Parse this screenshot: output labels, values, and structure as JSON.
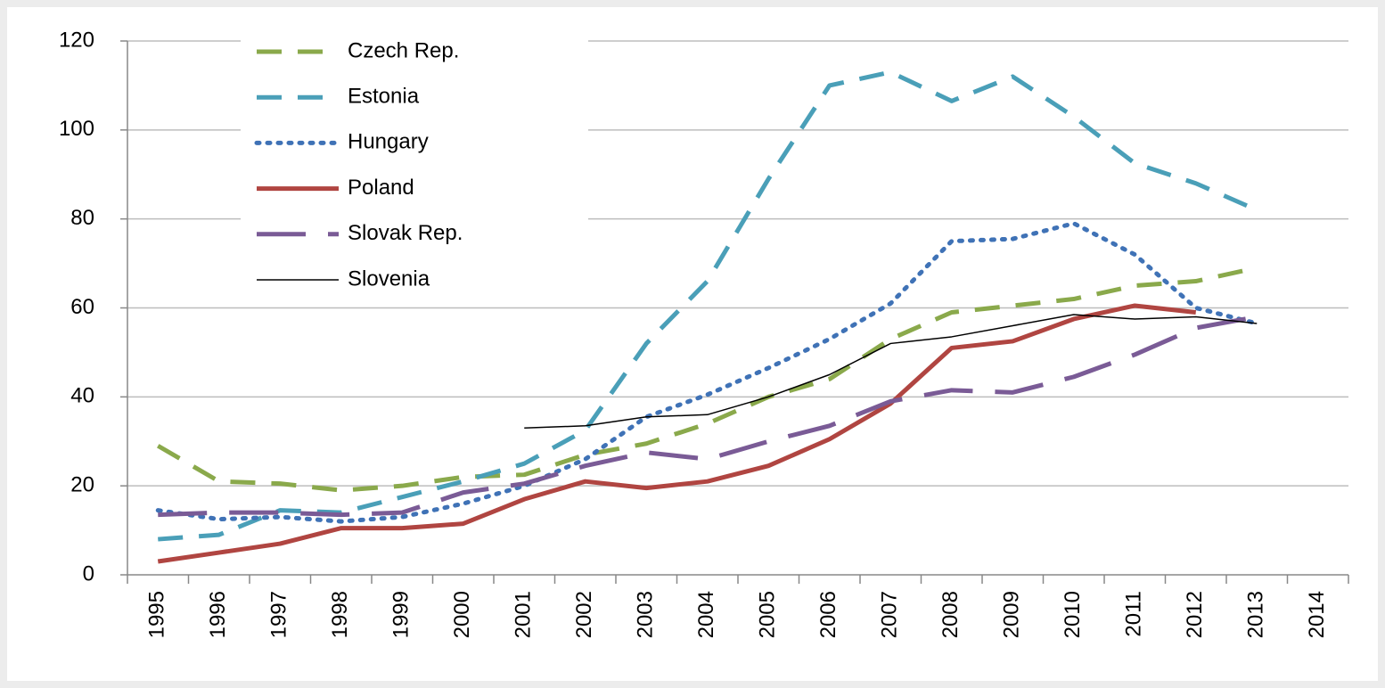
{
  "chart_data": {
    "type": "line",
    "categories": [
      "1995",
      "1996",
      "1997",
      "1998",
      "1999",
      "2000",
      "2001",
      "2002",
      "2003",
      "2004",
      "2005",
      "2006",
      "2007",
      "2008",
      "2009",
      "2010",
      "2011",
      "2012",
      "2013",
      "2014"
    ],
    "series": [
      {
        "name": "Czech Rep.",
        "color": "#8aa94b",
        "dash": "28 18",
        "width": 5,
        "values": [
          29,
          21,
          20.5,
          19,
          20,
          22,
          22.5,
          27,
          29.5,
          34,
          40,
          44,
          53,
          59,
          60.5,
          62,
          65,
          66,
          69,
          null
        ]
      },
      {
        "name": "Estonia",
        "color": "#4a9fb8",
        "dash": "28 18",
        "width": 5,
        "values": [
          8,
          9,
          14.5,
          14,
          17.5,
          21,
          25,
          32.5,
          52,
          66,
          89,
          110,
          113,
          106.5,
          112,
          103,
          92.5,
          88,
          82,
          null
        ]
      },
      {
        "name": "Hungary",
        "color": "#3f72b6",
        "dash": "3 9",
        "width": 5,
        "values": [
          14.5,
          12.5,
          13,
          12,
          13,
          16,
          20,
          26,
          35.5,
          40.5,
          46.5,
          53,
          61,
          75,
          75.5,
          79,
          72,
          60,
          56.5,
          null
        ]
      },
      {
        "name": "Poland",
        "color": "#b04541",
        "dash": "none",
        "width": 5,
        "values": [
          3,
          5,
          7,
          10.5,
          10.5,
          11.5,
          17,
          21,
          19.5,
          21,
          24.5,
          30.5,
          38.5,
          51,
          52.5,
          57.5,
          60.5,
          59,
          null,
          null
        ]
      },
      {
        "name": "Slovak Rep.",
        "color": "#7a5b96",
        "dash": "55 25",
        "width": 5,
        "values": [
          13.5,
          14,
          14,
          13.5,
          14,
          18.5,
          20.5,
          24.5,
          27.5,
          26,
          30,
          33.5,
          39,
          41.5,
          41,
          44.5,
          49.5,
          55.5,
          58,
          null
        ]
      },
      {
        "name": "Slovenia",
        "color": "#000000",
        "dash": "none",
        "width": 1.5,
        "values": [
          null,
          null,
          null,
          null,
          null,
          null,
          33,
          33.5,
          35.5,
          36,
          40,
          45,
          52,
          53.5,
          56,
          58.5,
          57.5,
          58,
          56.5,
          null
        ]
      }
    ],
    "ylim": [
      0,
      120
    ],
    "yticks": [
      0,
      20,
      40,
      60,
      80,
      100,
      120
    ],
    "grid": true,
    "legend": "top-left"
  }
}
